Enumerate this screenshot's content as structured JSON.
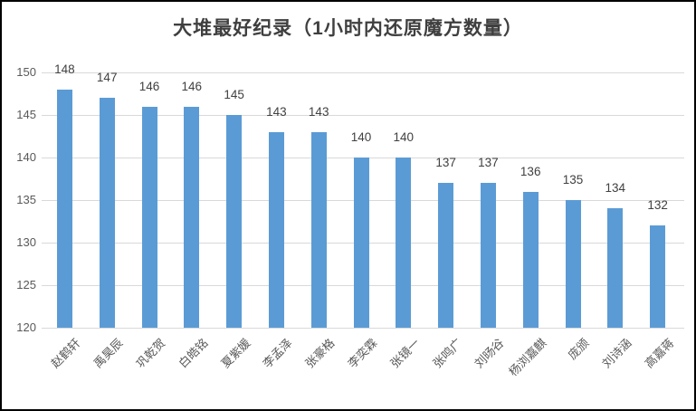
{
  "chart_data": {
    "type": "bar",
    "title": "大堆最好纪录（1小时内还原魔方数量）",
    "categories": [
      "赵鹤轩",
      "禹昊辰",
      "巩乾贺",
      "白皓铭",
      "夏紫媛",
      "李孟泽",
      "张豪格",
      "李奕霖",
      "张镜一",
      "张鸣广",
      "刘旸谷",
      "杨浏嘉麒",
      "庞颁",
      "刘诗涵",
      "高嘉蒋"
    ],
    "values": [
      148,
      147,
      146,
      146,
      145,
      143,
      143,
      140,
      140,
      137,
      137,
      136,
      135,
      134,
      132
    ],
    "yticks": [
      120,
      125,
      130,
      135,
      140,
      145,
      150
    ],
    "ylim": [
      120,
      150
    ],
    "xlabel": "",
    "ylabel": "",
    "grid": true,
    "legend_position": "none",
    "data_labels": true,
    "colors": {
      "bar": "#5B9BD5",
      "gridline": "#D9D9D9",
      "axis_tick_label": "#595959",
      "value_label": "#404040",
      "title": "#3F3F3F",
      "background": "#FFFFFF",
      "frame_border": "#000000"
    }
  }
}
